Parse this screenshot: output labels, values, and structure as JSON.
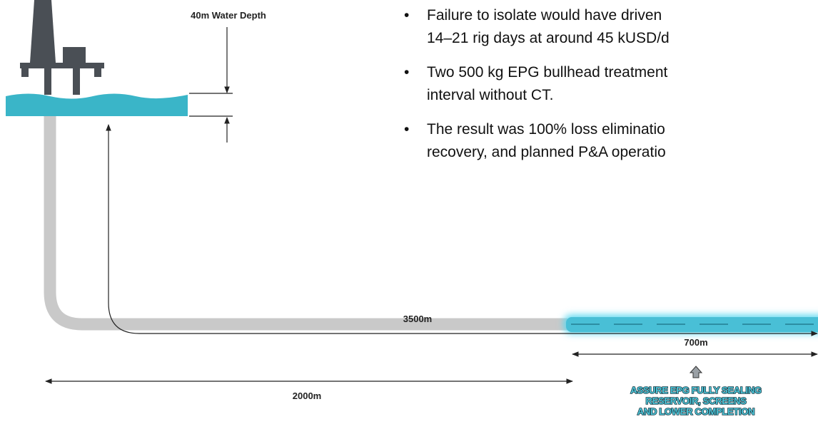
{
  "diagram": {
    "water_depth_label": "40m Water Depth",
    "bullets": [
      [
        "Failure to isolate would have driven",
        "14–21 rig days at around 45 kUSD/d"
      ],
      [
        "Two 500 kg EPG bullhead treatment",
        "interval without CT."
      ],
      [
        "The result was 100% loss eliminatio",
        "recovery, and planned P&A operatio"
      ]
    ],
    "total_length_label": "3500m",
    "treated_interval_label": "700m",
    "horizontal_offset_label": "2000m",
    "callout": [
      "ASSURE EPG FULLY SEALING",
      "RESERVOIR, SCREENS",
      "AND LOWER COMPLETION"
    ]
  }
}
